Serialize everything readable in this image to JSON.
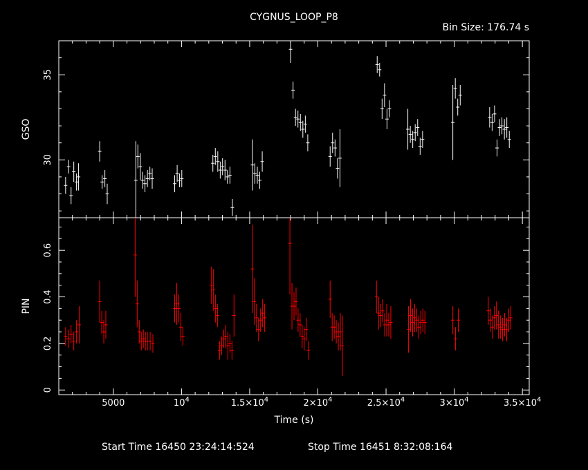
{
  "title": "CYGNUS_LOOP_P8",
  "bin_size": "Bin Size:  176.74  s",
  "start_time": "Start Time 16450 23:24:14:524",
  "stop_time": "Stop Time 16451   8:32:08:164",
  "colors": {
    "background": "#000000",
    "frame": "#ffffff",
    "gso": "#ffffff",
    "pin": "#ff0000"
  },
  "chart_data": [
    {
      "type": "scatter",
      "panel": "top",
      "ylabel": "GSO",
      "xlim": [
        1000,
        35500
      ],
      "ylim": [
        26.6,
        37.0
      ],
      "xticks": [
        5000,
        10000,
        15000,
        20000,
        25000,
        30000,
        35000
      ],
      "yticks": [
        30,
        35
      ],
      "grid": false,
      "series": [
        {
          "x": [
            1500,
            1720,
            1900,
            2100,
            2300,
            2450,
            4000,
            4180,
            4380,
            4550,
            6650,
            6800,
            6980,
            7150,
            7320,
            7500,
            7680,
            7850,
            9500,
            9680,
            9850,
            10020,
            12300,
            12480,
            12660,
            12840,
            13010,
            13190,
            13370,
            13550,
            13730,
            15200,
            15380,
            15560,
            15740,
            15920,
            18000,
            18180,
            18360,
            18540,
            18720,
            18900,
            19080,
            19260,
            20900,
            21080,
            21260,
            21440,
            21620,
            24350,
            24530,
            24710,
            24890,
            25070,
            25250,
            26600,
            26780,
            26960,
            27140,
            27320,
            27500,
            27680,
            29900,
            30080,
            30260,
            30440,
            32600,
            32780,
            32960,
            33140,
            33320,
            33500,
            33680,
            33860,
            34040
          ],
          "y": [
            28.5,
            29.6,
            27.9,
            29.3,
            28.7,
            29.0,
            30.5,
            28.7,
            28.9,
            28.0,
            28.8,
            30.2,
            29.6,
            28.8,
            28.6,
            28.9,
            29.2,
            28.9,
            28.6,
            29.2,
            28.8,
            28.9,
            29.8,
            30.2,
            29.9,
            29.4,
            29.6,
            29.4,
            29.0,
            29.1,
            27.2,
            29.7,
            29.2,
            29.1,
            28.8,
            29.9,
            36.5,
            34.1,
            32.5,
            32.4,
            32.2,
            31.8,
            32.1,
            31.0,
            30.2,
            31.0,
            30.7,
            29.5,
            30.1,
            35.6,
            35.3,
            33.0,
            33.8,
            32.4,
            33.0,
            31.8,
            31.5,
            31.2,
            31.6,
            31.9,
            30.8,
            31.2,
            32.2,
            34.2,
            33.1,
            33.8,
            32.5,
            32.2,
            32.7,
            30.7,
            31.9,
            32.0,
            31.8,
            31.9,
            31.2
          ],
          "yerr": [
            0.5,
            0.4,
            0.5,
            0.6,
            0.5,
            0.8,
            0.6,
            0.4,
            0.5,
            0.6,
            2.3,
            0.7,
            0.8,
            0.5,
            0.5,
            0.5,
            0.4,
            0.6,
            0.5,
            0.5,
            0.4,
            0.5,
            0.5,
            0.5,
            0.6,
            0.5,
            0.5,
            0.6,
            0.4,
            0.5,
            0.5,
            1.5,
            0.6,
            0.5,
            0.5,
            0.6,
            0.8,
            0.5,
            0.5,
            0.5,
            0.5,
            0.5,
            0.5,
            0.5,
            0.6,
            0.6,
            0.5,
            0.6,
            1.7,
            0.5,
            0.4,
            0.6,
            0.7,
            0.6,
            0.5,
            1.2,
            0.5,
            0.5,
            0.5,
            0.5,
            0.5,
            0.5,
            2.2,
            0.6,
            0.5,
            0.6,
            0.6,
            0.5,
            0.5,
            0.5,
            0.5,
            0.5,
            0.6,
            0.6,
            0.5
          ]
        }
      ]
    },
    {
      "type": "scatter",
      "panel": "bottom",
      "ylabel": "PIN",
      "xlabel": "Time (s)",
      "xlim": [
        1000,
        35500
      ],
      "ylim": [
        -0.02,
        0.74
      ],
      "xticks": [
        5000,
        10000,
        15000,
        20000,
        25000,
        30000,
        35000
      ],
      "xtick_labels": [
        "5000",
        "10⁴",
        "1.5×10⁴",
        "2×10⁴",
        "2.5×10⁴",
        "3×10⁴",
        "3.5×10⁴"
      ],
      "yticks": [
        0,
        0.2,
        0.4,
        0.6
      ],
      "yticks_labels": [
        "0",
        "0.2",
        "0.4",
        "0.6"
      ],
      "grid": false,
      "series": [
        {
          "x": [
            1500,
            1700,
            1900,
            2100,
            2300,
            2500,
            4000,
            4150,
            4300,
            4450,
            6600,
            6750,
            6900,
            7050,
            7200,
            7350,
            7500,
            7700,
            7900,
            9500,
            9650,
            9800,
            9950,
            10100,
            12200,
            12350,
            12500,
            12650,
            12800,
            12950,
            13100,
            13250,
            13400,
            13550,
            13700,
            13850,
            15200,
            15350,
            15500,
            15650,
            15800,
            15950,
            16100,
            17950,
            18100,
            18250,
            18400,
            18550,
            18700,
            18850,
            19000,
            19150,
            19300,
            20900,
            21050,
            21200,
            21350,
            21500,
            21650,
            21800,
            24300,
            24450,
            24600,
            24750,
            24900,
            25050,
            25200,
            25350,
            26650,
            26800,
            26950,
            27100,
            27250,
            27400,
            27550,
            27700,
            27850,
            29900,
            30100,
            30300,
            32500,
            32650,
            32800,
            32950,
            33100,
            33250,
            33400,
            33550,
            33700,
            33850,
            34000,
            34150
          ],
          "y": [
            0.23,
            0.22,
            0.24,
            0.21,
            0.25,
            0.28,
            0.38,
            0.29,
            0.25,
            0.28,
            0.58,
            0.37,
            0.25,
            0.21,
            0.22,
            0.21,
            0.21,
            0.21,
            0.2,
            0.35,
            0.37,
            0.35,
            0.27,
            0.23,
            0.45,
            0.43,
            0.35,
            0.32,
            0.17,
            0.19,
            0.22,
            0.23,
            0.19,
            0.2,
            0.17,
            0.32,
            0.52,
            0.38,
            0.31,
            0.26,
            0.3,
            0.33,
            0.31,
            0.63,
            0.36,
            0.36,
            0.38,
            0.3,
            0.28,
            0.23,
            0.22,
            0.26,
            0.17,
            0.39,
            0.27,
            0.27,
            0.25,
            0.23,
            0.25,
            0.19,
            0.4,
            0.33,
            0.32,
            0.34,
            0.28,
            0.3,
            0.28,
            0.29,
            0.26,
            0.32,
            0.29,
            0.31,
            0.3,
            0.27,
            0.29,
            0.3,
            0.29,
            0.3,
            0.22,
            0.3,
            0.34,
            0.3,
            0.27,
            0.31,
            0.32,
            0.28,
            0.27,
            0.26,
            0.28,
            0.26,
            0.3,
            0.31
          ],
          "yerr": [
            0.04,
            0.04,
            0.04,
            0.04,
            0.05,
            0.08,
            0.09,
            0.05,
            0.05,
            0.06,
            0.18,
            0.1,
            0.05,
            0.04,
            0.04,
            0.04,
            0.04,
            0.04,
            0.04,
            0.06,
            0.09,
            0.06,
            0.06,
            0.04,
            0.08,
            0.09,
            0.06,
            0.05,
            0.04,
            0.04,
            0.04,
            0.05,
            0.06,
            0.04,
            0.04,
            0.09,
            0.19,
            0.1,
            0.06,
            0.05,
            0.05,
            0.06,
            0.06,
            0.22,
            0.1,
            0.06,
            0.06,
            0.05,
            0.05,
            0.05,
            0.05,
            0.05,
            0.04,
            0.08,
            0.06,
            0.05,
            0.05,
            0.06,
            0.08,
            0.13,
            0.07,
            0.07,
            0.05,
            0.05,
            0.05,
            0.07,
            0.05,
            0.07,
            0.1,
            0.07,
            0.06,
            0.06,
            0.05,
            0.05,
            0.05,
            0.05,
            0.05,
            0.06,
            0.05,
            0.05,
            0.06,
            0.05,
            0.05,
            0.05,
            0.06,
            0.06,
            0.05,
            0.05,
            0.05,
            0.05,
            0.05,
            0.05
          ]
        }
      ]
    }
  ]
}
